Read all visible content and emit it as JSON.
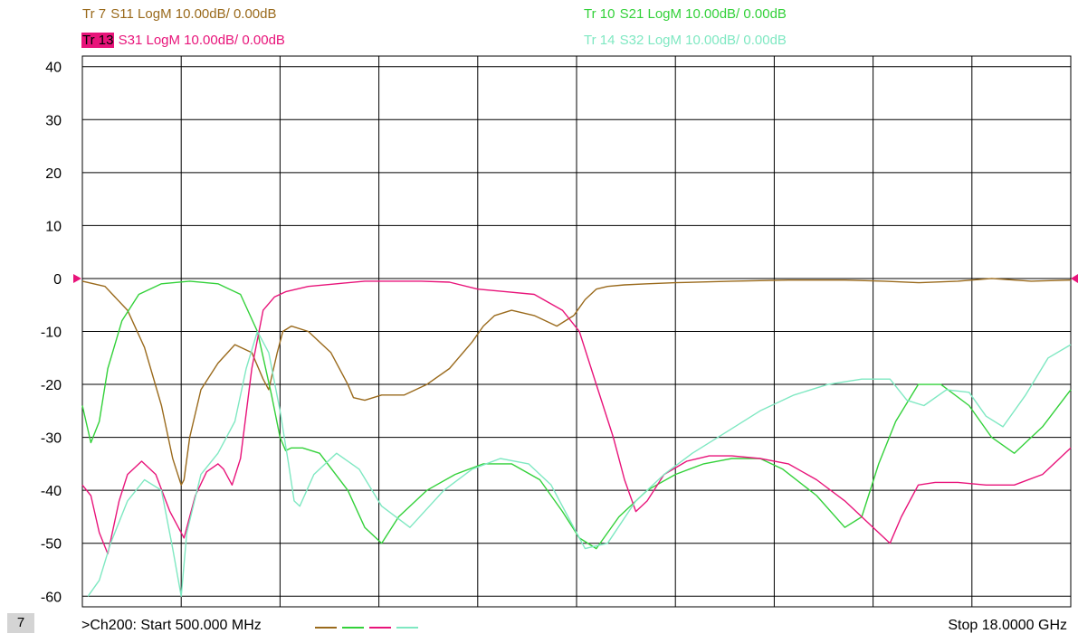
{
  "traces": [
    {
      "id": "tr7",
      "badge": "Tr  7",
      "text": "S11 LogM 10.00dB/  0.00dB",
      "color": "#9a6a1c",
      "active": false
    },
    {
      "id": "tr10",
      "badge": "Tr 10",
      "text": "S21 LogM 10.00dB/  0.00dB",
      "color": "#33d13a",
      "active": false
    },
    {
      "id": "tr13",
      "badge": "Tr 13",
      "text": "S31 LogM 10.00dB/  0.00dB",
      "color": "#e8147a",
      "active": true
    },
    {
      "id": "tr14",
      "badge": "Tr 14",
      "text": "S32 LogM 10.00dB/  0.00dB",
      "color": "#7fe8c2",
      "active": false
    }
  ],
  "footer": {
    "channel_number": "7",
    "start": ">Ch200:  Start   500.000 MHz",
    "stop": "Stop  18.0000 GHz"
  },
  "chart_data": {
    "type": "line",
    "ylim": [
      -62,
      42
    ],
    "yticks": [
      "40",
      "30",
      "20",
      "10",
      "0",
      "-10",
      "-20",
      "-30",
      "-40",
      "-50",
      "-60"
    ],
    "ytick_values": [
      40,
      30,
      20,
      10,
      0,
      -10,
      -20,
      -30,
      -40,
      -50,
      -60
    ],
    "xlim": [
      0.5,
      18.0
    ],
    "x_divisions": 10,
    "grid": true,
    "reference_level": 0,
    "series": [
      {
        "color": "#9a6a1c",
        "x": [
          0.5,
          0.9,
          1.3,
          1.6,
          1.9,
          2.1,
          2.25,
          2.3,
          2.4,
          2.6,
          2.9,
          3.2,
          3.5,
          3.7,
          3.8,
          3.95,
          4.05,
          4.2,
          4.5,
          4.9,
          5.2,
          5.3,
          5.5,
          5.8,
          6.2,
          6.6,
          7.0,
          7.4,
          7.6,
          7.8,
          8.1,
          8.5,
          8.9,
          9.2,
          9.4,
          9.6,
          9.8,
          10.1,
          10.5,
          11.0,
          12.0,
          13.0,
          14.0,
          14.7,
          15.3,
          16.0,
          16.6,
          17.3,
          18.0
        ],
        "values": [
          -0.5,
          -1.5,
          -6,
          -13,
          -24,
          -34,
          -39,
          -38,
          -30,
          -21,
          -16,
          -12.5,
          -14,
          -19,
          -21,
          -14,
          -10,
          -9,
          -10,
          -14,
          -20,
          -22.5,
          -23,
          -22,
          -22,
          -20,
          -17,
          -12,
          -9,
          -7,
          -6,
          -7,
          -9,
          -7,
          -4,
          -2,
          -1.5,
          -1.2,
          -1.0,
          -0.8,
          -0.5,
          -0.3,
          -0.3,
          -0.5,
          -0.8,
          -0.5,
          0,
          -0.5,
          -0.3
        ]
      },
      {
        "color": "#33d13a",
        "x": [
          0.5,
          0.65,
          0.8,
          0.95,
          1.2,
          1.5,
          1.9,
          2.4,
          2.9,
          3.3,
          3.6,
          3.85,
          4.0,
          4.1,
          4.2,
          4.4,
          4.7,
          5.2,
          5.5,
          5.8,
          6.1,
          6.6,
          7.1,
          7.6,
          8.1,
          8.6,
          9.0,
          9.3,
          9.6,
          10.0,
          10.5,
          11.0,
          11.5,
          12.0,
          12.5,
          12.9,
          13.5,
          14.0,
          14.3,
          14.6,
          14.9,
          15.3,
          15.7,
          16.2,
          16.6,
          17.0,
          17.5,
          18.0
        ],
        "values": [
          -24,
          -31,
          -27,
          -17,
          -8,
          -3,
          -1,
          -0.5,
          -1,
          -3,
          -10,
          -22,
          -30,
          -32.5,
          -32,
          -32,
          -33,
          -40,
          -47,
          -50,
          -45,
          -40,
          -37,
          -35,
          -35,
          -38,
          -44,
          -49,
          -51,
          -45,
          -40,
          -37,
          -35,
          -34,
          -34,
          -36,
          -41,
          -47,
          -45,
          -35,
          -27,
          -20,
          -20,
          -24,
          -30,
          -33,
          -28,
          -21
        ]
      },
      {
        "color": "#e8147a",
        "x": [
          0.5,
          0.65,
          0.8,
          0.95,
          1.15,
          1.3,
          1.55,
          1.8,
          2.05,
          2.3,
          2.5,
          2.7,
          2.9,
          3.0,
          3.15,
          3.3,
          3.5,
          3.7,
          3.9,
          4.1,
          4.5,
          5.0,
          5.5,
          6.0,
          6.5,
          7.0,
          7.5,
          8.0,
          8.5,
          9.0,
          9.3,
          9.6,
          9.9,
          10.1,
          10.3,
          10.5,
          10.8,
          11.2,
          11.6,
          12.0,
          12.5,
          13.0,
          13.5,
          14.0,
          14.5,
          14.8,
          15.0,
          15.3,
          15.6,
          16.0,
          16.5,
          17.0,
          17.5,
          18.0
        ],
        "values": [
          -39,
          -41,
          -48,
          -52,
          -42,
          -37,
          -34.5,
          -37,
          -44,
          -49,
          -41,
          -36.5,
          -35,
          -36,
          -39,
          -34,
          -17,
          -6,
          -3.5,
          -2.5,
          -1.5,
          -1,
          -0.5,
          -0.5,
          -0.5,
          -0.7,
          -2,
          -2.5,
          -3,
          -6,
          -10,
          -20,
          -30,
          -38,
          -44,
          -42,
          -37,
          -34.5,
          -33.5,
          -33.5,
          -34,
          -35,
          -38,
          -42,
          -47,
          -50,
          -45,
          -39,
          -38.5,
          -38.5,
          -39,
          -39,
          -37,
          -32
        ]
      },
      {
        "color": "#7fe8c2",
        "x": [
          0.6,
          0.8,
          1.0,
          1.3,
          1.6,
          1.9,
          2.1,
          2.25,
          2.35,
          2.6,
          2.9,
          3.2,
          3.4,
          3.6,
          3.8,
          4.0,
          4.15,
          4.25,
          4.35,
          4.6,
          5.0,
          5.4,
          5.8,
          6.3,
          6.9,
          7.4,
          7.9,
          8.4,
          8.8,
          9.1,
          9.4,
          9.8,
          10.3,
          10.8,
          11.3,
          11.9,
          12.5,
          13.1,
          13.7,
          14.3,
          14.8,
          15.1,
          15.4,
          15.8,
          16.2,
          16.5,
          16.8,
          17.2,
          17.6,
          18.0
        ],
        "values": [
          -60,
          -57,
          -50,
          -42,
          -38,
          -40,
          -51,
          -60,
          -48,
          -37,
          -33,
          -27,
          -17,
          -10,
          -14,
          -25,
          -35,
          -42,
          -43,
          -37,
          -33,
          -36,
          -43,
          -47,
          -40,
          -36,
          -34,
          -35,
          -39,
          -45,
          -51,
          -50,
          -42,
          -37,
          -33,
          -29,
          -25,
          -22,
          -20,
          -19,
          -19,
          -23,
          -24,
          -21,
          -21.5,
          -26,
          -28,
          -22,
          -15,
          -12.5
        ]
      }
    ]
  }
}
